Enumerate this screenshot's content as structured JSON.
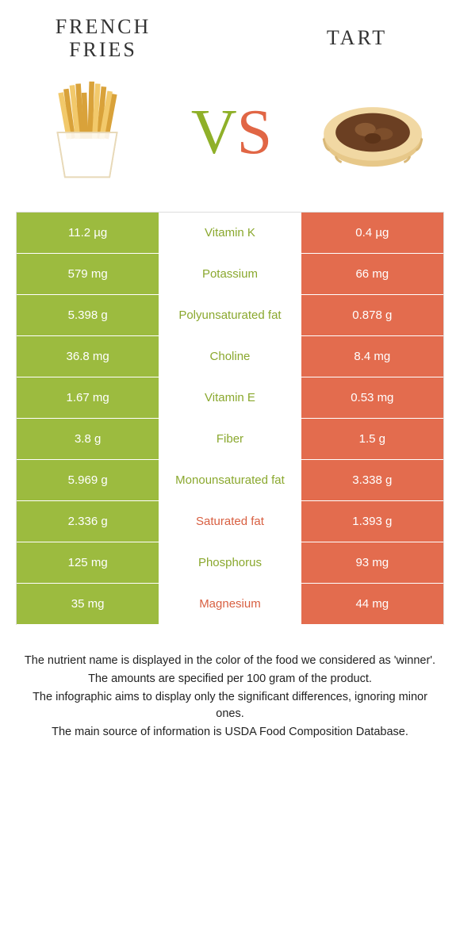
{
  "colors": {
    "left": "#9cbb3f",
    "right": "#e36c4e",
    "left_label": "#8aa82e",
    "right_label": "#d85f41"
  },
  "foods": {
    "left": {
      "title": "French fries"
    },
    "right": {
      "title": "Tart"
    }
  },
  "vs": {
    "v": "V",
    "s": "S"
  },
  "rows": [
    {
      "label": "Vitamin K",
      "left": "11.2 µg",
      "right": "0.4 µg",
      "winner": "left"
    },
    {
      "label": "Potassium",
      "left": "579 mg",
      "right": "66 mg",
      "winner": "left"
    },
    {
      "label": "Polyunsaturated fat",
      "left": "5.398 g",
      "right": "0.878 g",
      "winner": "left"
    },
    {
      "label": "Choline",
      "left": "36.8 mg",
      "right": "8.4 mg",
      "winner": "left"
    },
    {
      "label": "Vitamin E",
      "left": "1.67 mg",
      "right": "0.53 mg",
      "winner": "left"
    },
    {
      "label": "Fiber",
      "left": "3.8 g",
      "right": "1.5 g",
      "winner": "left"
    },
    {
      "label": "Monounsaturated fat",
      "left": "5.969 g",
      "right": "3.338 g",
      "winner": "left"
    },
    {
      "label": "Saturated fat",
      "left": "2.336 g",
      "right": "1.393 g",
      "winner": "right"
    },
    {
      "label": "Phosphorus",
      "left": "125 mg",
      "right": "93 mg",
      "winner": "left"
    },
    {
      "label": "Magnesium",
      "left": "35 mg",
      "right": "44 mg",
      "winner": "right"
    }
  ],
  "footnotes": [
    "The nutrient name is displayed in the color of the food we considered as 'winner'.",
    "The amounts are specified per 100 gram of the product.",
    "The infographic aims to display only the significant differences, ignoring minor ones.",
    "The main source of information is USDA Food Composition Database."
  ]
}
